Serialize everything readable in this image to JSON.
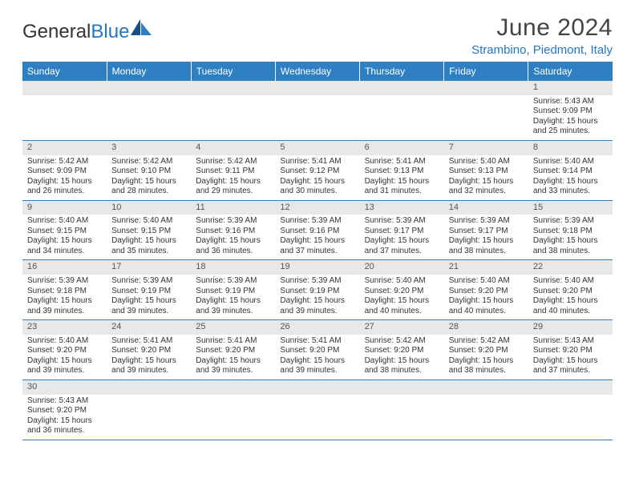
{
  "brand": {
    "part1": "General",
    "part2": "Blue"
  },
  "title": "June 2024",
  "location": "Strambino, Piedmont, Italy",
  "colors": {
    "header_bg": "#2f7fc3",
    "accent": "#2276c4",
    "daynum_bg": "#e8e8e8",
    "text": "#333333"
  },
  "typography": {
    "title_fontsize": 30,
    "location_fontsize": 15,
    "dayhead_fontsize": 12,
    "cell_fontsize": 10
  },
  "weekdays": [
    "Sunday",
    "Monday",
    "Tuesday",
    "Wednesday",
    "Thursday",
    "Friday",
    "Saturday"
  ],
  "layout": {
    "columns": 7,
    "rows": 6,
    "start_weekday_index": 6,
    "days_in_month": 30
  },
  "days": {
    "1": {
      "sunrise": "5:43 AM",
      "sunset": "9:09 PM",
      "daylight": "15 hours and 25 minutes."
    },
    "2": {
      "sunrise": "5:42 AM",
      "sunset": "9:09 PM",
      "daylight": "15 hours and 26 minutes."
    },
    "3": {
      "sunrise": "5:42 AM",
      "sunset": "9:10 PM",
      "daylight": "15 hours and 28 minutes."
    },
    "4": {
      "sunrise": "5:42 AM",
      "sunset": "9:11 PM",
      "daylight": "15 hours and 29 minutes."
    },
    "5": {
      "sunrise": "5:41 AM",
      "sunset": "9:12 PM",
      "daylight": "15 hours and 30 minutes."
    },
    "6": {
      "sunrise": "5:41 AM",
      "sunset": "9:13 PM",
      "daylight": "15 hours and 31 minutes."
    },
    "7": {
      "sunrise": "5:40 AM",
      "sunset": "9:13 PM",
      "daylight": "15 hours and 32 minutes."
    },
    "8": {
      "sunrise": "5:40 AM",
      "sunset": "9:14 PM",
      "daylight": "15 hours and 33 minutes."
    },
    "9": {
      "sunrise": "5:40 AM",
      "sunset": "9:15 PM",
      "daylight": "15 hours and 34 minutes."
    },
    "10": {
      "sunrise": "5:40 AM",
      "sunset": "9:15 PM",
      "daylight": "15 hours and 35 minutes."
    },
    "11": {
      "sunrise": "5:39 AM",
      "sunset": "9:16 PM",
      "daylight": "15 hours and 36 minutes."
    },
    "12": {
      "sunrise": "5:39 AM",
      "sunset": "9:16 PM",
      "daylight": "15 hours and 37 minutes."
    },
    "13": {
      "sunrise": "5:39 AM",
      "sunset": "9:17 PM",
      "daylight": "15 hours and 37 minutes."
    },
    "14": {
      "sunrise": "5:39 AM",
      "sunset": "9:17 PM",
      "daylight": "15 hours and 38 minutes."
    },
    "15": {
      "sunrise": "5:39 AM",
      "sunset": "9:18 PM",
      "daylight": "15 hours and 38 minutes."
    },
    "16": {
      "sunrise": "5:39 AM",
      "sunset": "9:18 PM",
      "daylight": "15 hours and 39 minutes."
    },
    "17": {
      "sunrise": "5:39 AM",
      "sunset": "9:19 PM",
      "daylight": "15 hours and 39 minutes."
    },
    "18": {
      "sunrise": "5:39 AM",
      "sunset": "9:19 PM",
      "daylight": "15 hours and 39 minutes."
    },
    "19": {
      "sunrise": "5:39 AM",
      "sunset": "9:19 PM",
      "daylight": "15 hours and 39 minutes."
    },
    "20": {
      "sunrise": "5:40 AM",
      "sunset": "9:20 PM",
      "daylight": "15 hours and 40 minutes."
    },
    "21": {
      "sunrise": "5:40 AM",
      "sunset": "9:20 PM",
      "daylight": "15 hours and 40 minutes."
    },
    "22": {
      "sunrise": "5:40 AM",
      "sunset": "9:20 PM",
      "daylight": "15 hours and 40 minutes."
    },
    "23": {
      "sunrise": "5:40 AM",
      "sunset": "9:20 PM",
      "daylight": "15 hours and 39 minutes."
    },
    "24": {
      "sunrise": "5:41 AM",
      "sunset": "9:20 PM",
      "daylight": "15 hours and 39 minutes."
    },
    "25": {
      "sunrise": "5:41 AM",
      "sunset": "9:20 PM",
      "daylight": "15 hours and 39 minutes."
    },
    "26": {
      "sunrise": "5:41 AM",
      "sunset": "9:20 PM",
      "daylight": "15 hours and 39 minutes."
    },
    "27": {
      "sunrise": "5:42 AM",
      "sunset": "9:20 PM",
      "daylight": "15 hours and 38 minutes."
    },
    "28": {
      "sunrise": "5:42 AM",
      "sunset": "9:20 PM",
      "daylight": "15 hours and 38 minutes."
    },
    "29": {
      "sunrise": "5:43 AM",
      "sunset": "9:20 PM",
      "daylight": "15 hours and 37 minutes."
    },
    "30": {
      "sunrise": "5:43 AM",
      "sunset": "9:20 PM",
      "daylight": "15 hours and 36 minutes."
    }
  },
  "labels": {
    "sunrise_prefix": "Sunrise: ",
    "sunset_prefix": "Sunset: ",
    "daylight_prefix": "Daylight: "
  }
}
